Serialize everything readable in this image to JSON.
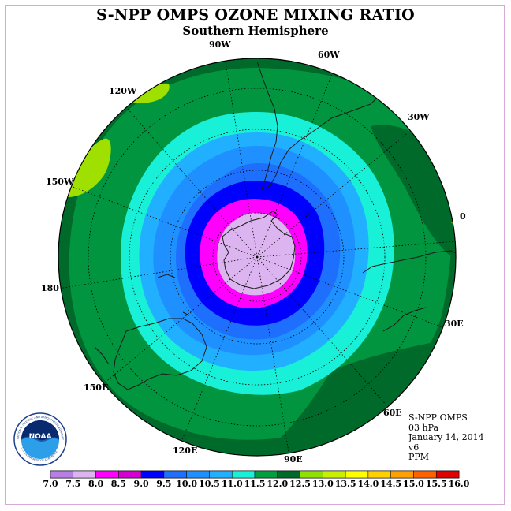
{
  "title": "S-NPP OMPS OZONE MIXING RATIO",
  "subtitle": "Southern Hemisphere",
  "meridian_labels": [
    "90W",
    "60W",
    "30W",
    "0",
    "30E",
    "60E",
    "90E",
    "120E",
    "150E",
    "180",
    "150W",
    "120W"
  ],
  "info": {
    "instrument": "S-NPP OMPS",
    "level": "03 hPa",
    "date": "January 14, 2014",
    "version": "v6",
    "units": "PPM"
  },
  "logo": {
    "text": "NOAA",
    "ring_text": "NATIONAL OCEANIC AND ATMOSPHERIC ADMINISTRATION",
    "bottom_text": "U.S. DEPARTMENT OF COMMERCE"
  },
  "colorbar": {
    "labels": [
      "7.0",
      "7.5",
      "8.0",
      "8.5",
      "9.0",
      "9.5",
      "10.0",
      "10.5",
      "11.0",
      "11.5",
      "12.0",
      "12.5",
      "13.0",
      "13.5",
      "14.0",
      "14.5",
      "15.0",
      "15.5",
      "16.0"
    ],
    "colors": [
      "#b77fe6",
      "#dcb4f0",
      "#ff00ff",
      "#d400d4",
      "#0000ff",
      "#1f6fff",
      "#1e90ff",
      "#20b0ff",
      "#18f0d8",
      "#00a040",
      "#006a2a",
      "#90e000",
      "#c8f000",
      "#ffff00",
      "#ffd000",
      "#ffa000",
      "#ff6000",
      "#e00000",
      "#8b4a2b"
    ]
  },
  "map_colors": {
    "c8_0": "#dcb4f0",
    "c8_5": "#ff00ff",
    "c9_0": "#0000ff",
    "c9_5": "#1f6fff",
    "c10_0": "#1e90ff",
    "c10_5": "#20b0ff",
    "c11_0": "#18f0d8",
    "c11_5": "#00953e",
    "c12_0": "#006a2a",
    "c12_5": "#a0e000"
  }
}
